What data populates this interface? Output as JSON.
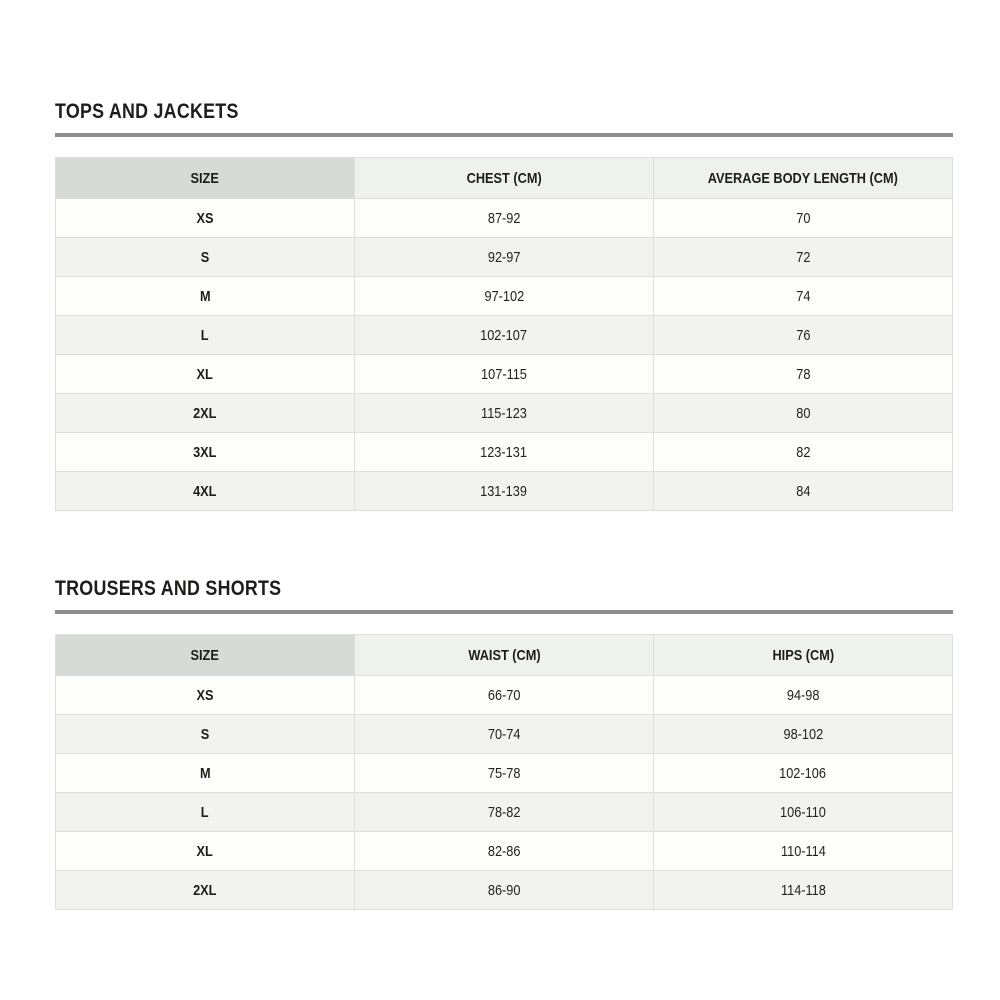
{
  "colors": {
    "page_background": "#ffffff",
    "heading_text": "#1d1d1b",
    "divider": "#8d8d8b",
    "header_size_cell_bg": "#d6dbd5",
    "header_cell_bg": "#eff1ec",
    "row_even_bg": "#f2f2ef",
    "row_odd_bg": "#fdfdfc",
    "cell_border": "#dededc"
  },
  "sections": [
    {
      "title": "TOPS AND JACKETS",
      "columns": [
        "SIZE",
        "CHEST (CM)",
        "AVERAGE BODY LENGTH (CM)"
      ],
      "rows": [
        [
          "XS",
          "87-92",
          "70"
        ],
        [
          "S",
          "92-97",
          "72"
        ],
        [
          "M",
          "97-102",
          "74"
        ],
        [
          "L",
          "102-107",
          "76"
        ],
        [
          "XL",
          "107-115",
          "78"
        ],
        [
          "2XL",
          "115-123",
          "80"
        ],
        [
          "3XL",
          "123-131",
          "82"
        ],
        [
          "4XL",
          "131-139",
          "84"
        ]
      ]
    },
    {
      "title": "TROUSERS AND SHORTS",
      "columns": [
        "SIZE",
        "WAIST (CM)",
        "HIPS (CM)"
      ],
      "rows": [
        [
          "XS",
          "66-70",
          "94-98"
        ],
        [
          "S",
          "70-74",
          "98-102"
        ],
        [
          "M",
          "75-78",
          "102-106"
        ],
        [
          "L",
          "78-82",
          "106-110"
        ],
        [
          "XL",
          "82-86",
          "110-114"
        ],
        [
          "2XL",
          "86-90",
          "114-118"
        ]
      ]
    }
  ]
}
